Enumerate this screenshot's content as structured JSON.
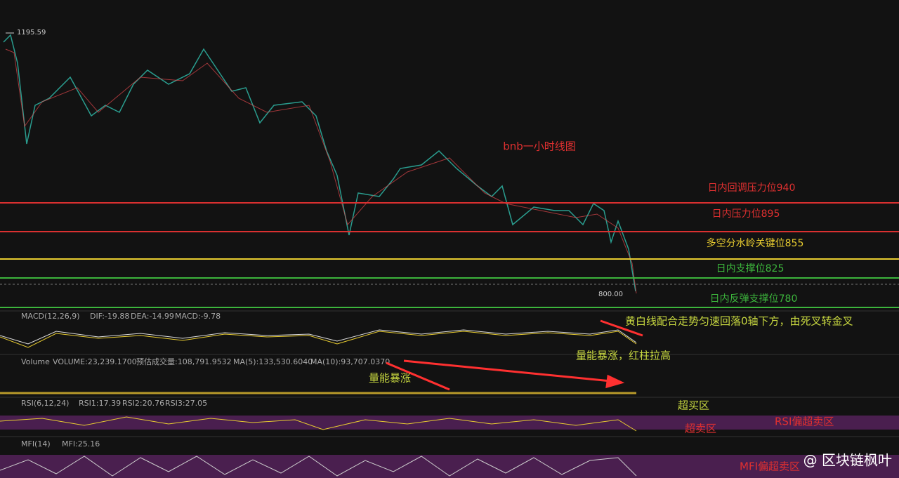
{
  "price_high": "1195.59",
  "price_low": "800.00",
  "title": "bnb一小时线图",
  "levels": [
    {
      "label": "日内回调压力位940"
    },
    {
      "label": "日内压力位895"
    },
    {
      "label": "多空分水岭关键位855"
    },
    {
      "label": "日内支撑位825"
    },
    {
      "label": "日内反弹支撑位780"
    }
  ],
  "macd": {
    "name": "MACD(12,26,9)",
    "dif": "DIF:-19.88",
    "dea": "DEA:-14.99",
    "macd": "MACD:-9.78"
  },
  "volume": {
    "name": "Volume",
    "volume": "VOLUME:23,239.1700",
    "estimate": "预估成交量:108,791.9532",
    "ma5": "MA(5):133,530.6040",
    "ma10": "MA(10):93,707.0370"
  },
  "rsi": {
    "name": "RSI(6,12,24)",
    "rsi1": "RSI1:17.39",
    "rsi2": "RSI2:20.76",
    "rsi3": "RSI3:27.05"
  },
  "mfi": {
    "name": "MFI(14)",
    "mfi": "MFI:25.16"
  },
  "annotations": [
    "黄白线配合走势匀速回落0轴下方，由死叉转金叉",
    "量能暴涨，红柱拉高",
    "量能暴涨",
    "超买区",
    "超卖区",
    "RSI偏超卖区",
    "MFI偏超卖区"
  ],
  "watermark": "@ 区块链枫叶"
}
